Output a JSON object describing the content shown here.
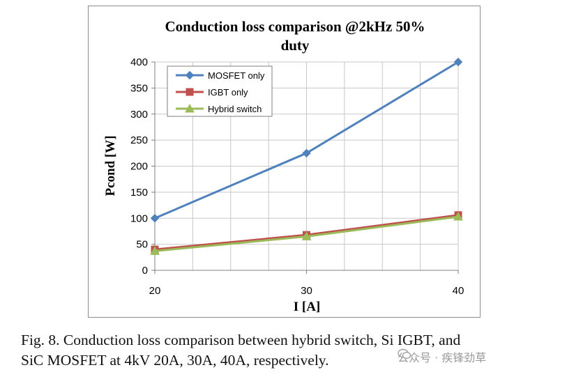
{
  "chart_data": {
    "type": "line",
    "title": "Conduction loss  comparison @2kHz 50% duty",
    "title_lines": [
      "Conduction loss  comparison @2kHz 50%",
      "duty"
    ],
    "xlabel": "I [A]",
    "ylabel": "Pcond [W]",
    "x": [
      20,
      30,
      40
    ],
    "xlim": [
      20,
      40
    ],
    "ylim": [
      0,
      400
    ],
    "x_ticks": [
      20,
      30,
      40
    ],
    "y_ticks": [
      0,
      50,
      100,
      150,
      200,
      250,
      300,
      350,
      400
    ],
    "grid": true,
    "legend_position": "top-left",
    "series": [
      {
        "name": "MOSFET only",
        "values": [
          100,
          225,
          400
        ],
        "color": "#4f81bd",
        "marker": "diamond"
      },
      {
        "name": "IGBT only",
        "values": [
          40,
          68,
          106
        ],
        "color": "#c0504d",
        "marker": "square"
      },
      {
        "name": "Hybrid switch",
        "values": [
          37,
          65,
          103
        ],
        "color": "#9bbb59",
        "marker": "triangle"
      }
    ]
  },
  "caption": {
    "line1": "Fig. 8.   Conduction loss comparison between hybrid switch, Si IGBT, and",
    "line2": "SiC MOSFET at 4kV 20A, 30A, 40A, respectively."
  },
  "watermark": {
    "text": "公众号 · 疾锋劲草"
  }
}
